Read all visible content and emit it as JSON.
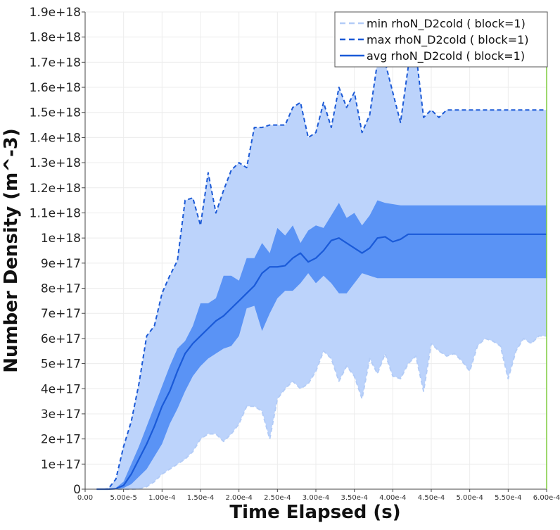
{
  "colors": {
    "min_band": "#bcd3fb",
    "inner_band": "#5a93f5",
    "min_line": "#b3ccf7",
    "max_line": "#1c5ad6",
    "avg_line": "#1a5ad8",
    "right_edge": "#7ecb3f",
    "grid": "#ececec"
  },
  "chart_data": {
    "type": "line",
    "xlabel": "Time Elapsed (s)",
    "ylabel": "Number Density (m^-3)",
    "xlim": [
      0,
      0.0006
    ],
    "ylim": [
      0,
      1.9e+18
    ],
    "grid": true,
    "legend_position": "top-right",
    "x_tick_values": [
      0,
      5e-05,
      0.0001,
      0.00015,
      0.0002,
      0.00025,
      0.0003,
      0.00035,
      0.0004,
      0.00045,
      0.0005,
      0.00055,
      0.0006
    ],
    "x_tick_labels": [
      "0.00",
      "5.00e-5",
      "1.00e-4",
      "1.50e-4",
      "2.00e-4",
      "2.50e-4",
      "3.00e-4",
      "3.50e-4",
      "4.00e-4",
      "4.50e-4",
      "5.00e-4",
      "5.50e-4",
      "6.00e-4"
    ],
    "y_tick_values": [
      0,
      1e+17,
      2e+17,
      3e+17,
      4e+17,
      5e+17,
      6e+17,
      7e+17,
      8e+17,
      9e+17,
      1e+18,
      1.1e+18,
      1.2e+18,
      1.3e+18,
      1.4e+18,
      1.5e+18,
      1.6e+18,
      1.7e+18,
      1.8e+18,
      1.9e+18
    ],
    "y_tick_labels": [
      "0",
      "1e+17",
      "2e+17",
      "3e+17",
      "4e+17",
      "5e+17",
      "6e+17",
      "7e+17",
      "8e+17",
      "9e+17",
      "1e+18",
      "1.1e+18",
      "1.2e+18",
      "1.3e+18",
      "1.4e+18",
      "1.5e+18",
      "1.6e+18",
      "1.7e+18",
      "1.8e+18",
      "1.9e+18"
    ],
    "x": [
      1.5e-05,
      2.5e-05,
      3e-05,
      4e-05,
      5e-05,
      6e-05,
      7e-05,
      8e-05,
      9e-05,
      0.0001,
      0.00011,
      0.00012,
      0.00013,
      0.00014,
      0.00015,
      0.00016,
      0.00017,
      0.00018,
      0.00019,
      0.0002,
      0.00021,
      0.00022,
      0.00023,
      0.00024,
      0.00025,
      0.00026,
      0.00027,
      0.00028,
      0.00029,
      0.0003,
      0.00031,
      0.00032,
      0.00033,
      0.00034,
      0.00035,
      0.00036,
      0.00037,
      0.00038,
      0.00039,
      0.0004,
      0.00041,
      0.00042,
      0.00043,
      0.00044,
      0.00045,
      0.00046,
      0.00047,
      0.00048,
      0.00049,
      0.0005,
      0.00051,
      0.00052,
      0.00053,
      0.00054,
      0.00055,
      0.00056,
      0.00057,
      0.00058,
      0.00059,
      0.0006
    ],
    "series": [
      {
        "name": "min rhoN_D2cold ( block=1)",
        "style": "dashed",
        "values": [
          0,
          0,
          0,
          0,
          0,
          0,
          1000000000000000.0,
          1e+16,
          3e+16,
          6e+16,
          8e+16,
          1e+17,
          1.2e+17,
          1.5e+17,
          2e+17,
          2.2e+17,
          2.2e+17,
          1.9e+17,
          2.2e+17,
          2.6e+17,
          3.3e+17,
          3.3e+17,
          3.1e+17,
          2e+17,
          3.6e+17,
          4e+17,
          4.3e+17,
          4e+17,
          4.2e+17,
          4.7e+17,
          5.5e+17,
          5.2e+17,
          4.3e+17,
          4.9e+17,
          4.5e+17,
          3.6e+17,
          5.2e+17,
          4.6e+17,
          5.4e+17,
          4.5e+17,
          4.4e+17,
          5e+17,
          5.3e+17,
          3.9e+17,
          5.8e+17,
          5.5e+17,
          5.3e+17,
          5.4e+17,
          5.1e+17,
          4.7e+17,
          5.7e+17,
          6e+17,
          5.9e+17,
          5.7e+17,
          4.4e+17,
          5.5e+17,
          6e+17,
          5.8e+17,
          6.1e+17,
          6.1e+17
        ]
      },
      {
        "name": "max rhoN_D2cold ( block=1)",
        "style": "dashed",
        "values": [
          0,
          0,
          1000000000000000.0,
          4e+16,
          1.7e+17,
          2.7e+17,
          4.2e+17,
          6.1e+17,
          6.5e+17,
          7.8e+17,
          8.5e+17,
          9.1e+17,
          1.15e+18,
          1.16e+18,
          1.05e+18,
          1.26e+18,
          1.1e+18,
          1.19e+18,
          1.27e+18,
          1.3e+18,
          1.28e+18,
          1.44e+18,
          1.44e+18,
          1.45e+18,
          1.45e+18,
          1.45e+18,
          1.52e+18,
          1.54e+18,
          1.4e+18,
          1.42e+18,
          1.54e+18,
          1.44e+18,
          1.6e+18,
          1.52e+18,
          1.58e+18,
          1.42e+18,
          1.49e+18,
          1.7e+18,
          1.7e+18,
          1.58e+18,
          1.46e+18,
          1.68e+18,
          1.74e+18,
          1.48e+18,
          1.51e+18,
          1.48e+18,
          1.51e+18,
          1.51e+18,
          1.51e+18,
          1.51e+18,
          1.51e+18,
          1.51e+18,
          1.51e+18,
          1.51e+18,
          1.51e+18,
          1.51e+18,
          1.51e+18,
          1.51e+18,
          1.51e+18,
          1.51e+18
        ]
      },
      {
        "name": "avg rhoN_D2cold ( block=1)",
        "style": "solid",
        "values": [
          0,
          0,
          0,
          2000000000000000.0,
          1.5e+16,
          6e+16,
          1.2e+17,
          1.8e+17,
          2.5e+17,
          3.3e+17,
          3.9e+17,
          4.7e+17,
          5.4e+17,
          5.8e+17,
          6.1e+17,
          6.4e+17,
          6.7e+17,
          6.9e+17,
          7.2e+17,
          7.5e+17,
          7.8e+17,
          8.1e+17,
          8.6e+17,
          8.85e+17,
          8.85e+17,
          8.9e+17,
          9.2e+17,
          9.4e+17,
          9.05e+17,
          9.2e+17,
          9.5e+17,
          9.9e+17,
          1e+18,
          9.8e+17,
          9.6e+17,
          9.4e+17,
          9.6e+17,
          1e+18,
          1.005e+18,
          9.85e+17,
          9.95e+17,
          1.015e+18,
          1.015e+18,
          1.015e+18,
          1.015e+18,
          1.015e+18,
          1.015e+18,
          1.015e+18,
          1.015e+18,
          1.015e+18,
          1.015e+18,
          1.015e+18,
          1.015e+18,
          1.015e+18,
          1.015e+18,
          1.015e+18,
          1.015e+18,
          1.015e+18,
          1.015e+18,
          1.015e+18
        ]
      }
    ],
    "inner_band_lower": [
      0,
      0,
      0,
      0,
      5000000000000000.0,
      2e+16,
      5e+16,
      8e+16,
      1.3e+17,
      1.8e+17,
      2.6e+17,
      3.2e+17,
      3.9e+17,
      4.5e+17,
      4.9e+17,
      5.2e+17,
      5.4e+17,
      5.6e+17,
      5.7e+17,
      6.1e+17,
      7.2e+17,
      7.3e+17,
      6.3e+17,
      7e+17,
      7.6e+17,
      7.9e+17,
      7.9e+17,
      8.2e+17,
      8.6e+17,
      8.2e+17,
      8.5e+17,
      8.2e+17,
      7.8e+17,
      7.8e+17,
      8.2e+17,
      8.6e+17,
      8.5e+17,
      8.4e+17,
      8.4e+17,
      8.4e+17,
      8.4e+17,
      8.4e+17,
      8.4e+17,
      8.4e+17,
      8.4e+17,
      8.4e+17,
      8.4e+17,
      8.4e+17,
      8.4e+17,
      8.4e+17,
      8.4e+17,
      8.4e+17,
      8.4e+17,
      8.4e+17,
      8.4e+17,
      8.4e+17,
      8.4e+17,
      8.4e+17,
      8.4e+17,
      8.4e+17
    ],
    "inner_band_upper": [
      0,
      0,
      0,
      5000000000000000.0,
      3e+16,
      1e+17,
      1.7e+17,
      2.5e+17,
      3.3e+17,
      4.1e+17,
      4.9e+17,
      5.6e+17,
      5.9e+17,
      6.5e+17,
      7.4e+17,
      7.4e+17,
      7.6e+17,
      8.5e+17,
      8.5e+17,
      8.3e+17,
      9.2e+17,
      9.2e+17,
      9.8e+17,
      9.4e+17,
      1.04e+18,
      1.01e+18,
      1.05e+18,
      9.8e+17,
      1.03e+18,
      1.05e+18,
      1.04e+18,
      1.09e+18,
      1.14e+18,
      1.08e+18,
      1.1e+18,
      1.05e+18,
      1.09e+18,
      1.15e+18,
      1.14e+18,
      1.135e+18,
      1.13e+18,
      1.13e+18,
      1.13e+18,
      1.13e+18,
      1.13e+18,
      1.13e+18,
      1.13e+18,
      1.13e+18,
      1.13e+18,
      1.13e+18,
      1.13e+18,
      1.13e+18,
      1.13e+18,
      1.13e+18,
      1.13e+18,
      1.13e+18,
      1.13e+18,
      1.13e+18,
      1.13e+18,
      1.13e+18
    ]
  }
}
